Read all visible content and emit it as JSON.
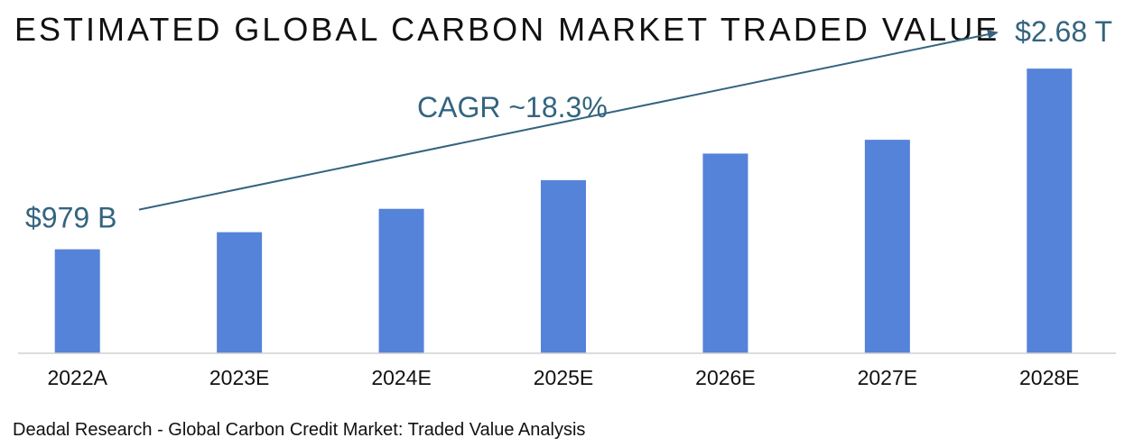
{
  "title": "ESTIMATED GLOBAL CARBON MARKET TRADED VALUE",
  "source": "Deadal Research - Global Carbon Credit Market: Traded Value Analysis",
  "colors": {
    "bar": "#5583d9",
    "annotation": "#34647f",
    "axis": "#d0d0d0",
    "text": "#111111"
  },
  "chart_data": {
    "type": "bar",
    "title": "ESTIMATED GLOBAL CARBON MARKET TRADED VALUE",
    "xlabel": "",
    "ylabel": "",
    "categories": [
      "2022A",
      "2023E",
      "2024E",
      "2025E",
      "2026E",
      "2027E",
      "2028E"
    ],
    "values": [
      979,
      1140,
      1360,
      1630,
      1880,
      2010,
      2680
    ],
    "units": "USD billions",
    "ylim": [
      0,
      2800
    ],
    "grid": false,
    "legend": "none",
    "annotations": {
      "start_label": "$979 B",
      "end_label": "$2.68 T",
      "cagr_label": "CAGR ~18.3%"
    }
  }
}
